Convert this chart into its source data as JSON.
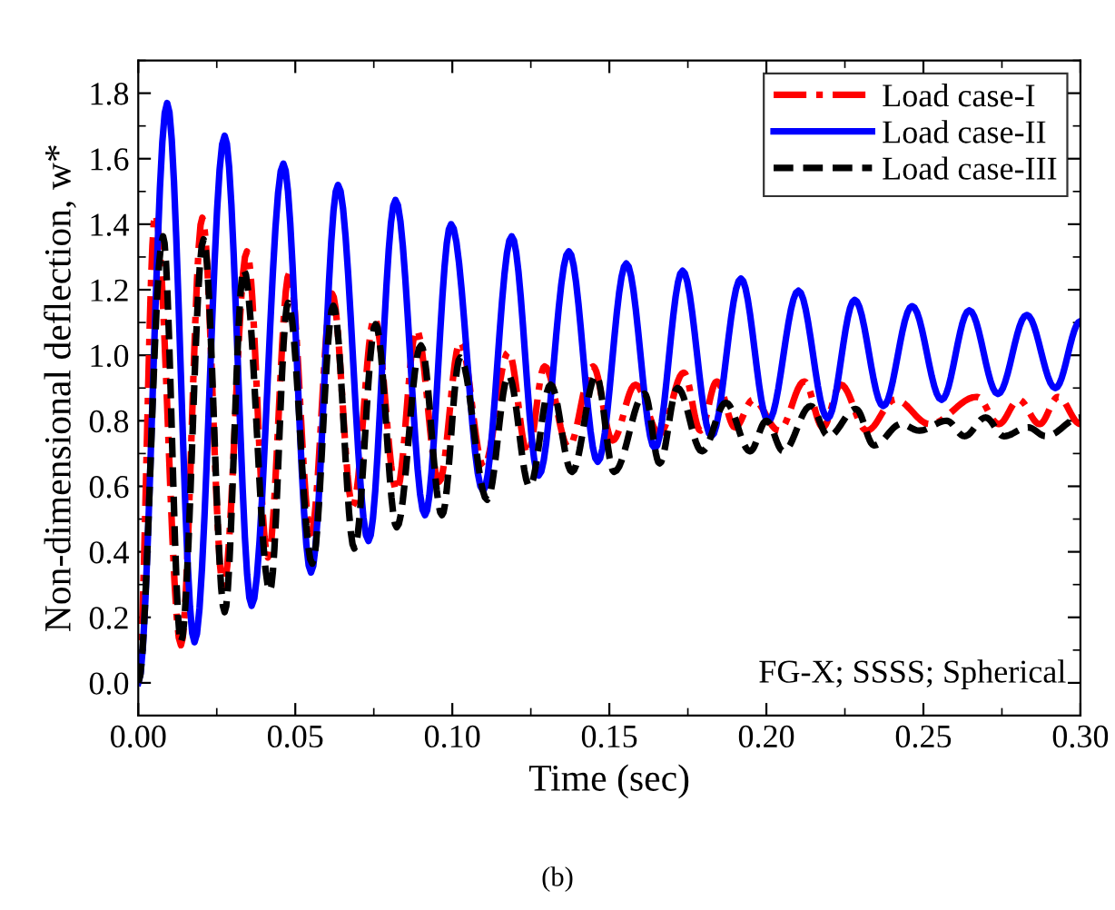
{
  "chart_data": {
    "type": "line",
    "xlabel": "Time (sec)",
    "ylabel": "Non-dimensional deflection, w*",
    "xlim": [
      0,
      0.3
    ],
    "ylim": [
      -0.1,
      1.9
    ],
    "xticks": [
      {
        "value": 0,
        "label": "0.00"
      },
      {
        "value": 0.05,
        "label": "0.05"
      },
      {
        "value": 0.1,
        "label": "0.10"
      },
      {
        "value": 0.15,
        "label": "0.15"
      },
      {
        "value": 0.2,
        "label": "0.20"
      },
      {
        "value": 0.25,
        "label": "0.25"
      },
      {
        "value": 0.3,
        "label": "0.30"
      }
    ],
    "yticks": [
      {
        "value": 0,
        "label": "0.0"
      },
      {
        "value": 0.2,
        "label": "0.2"
      },
      {
        "value": 0.4,
        "label": "0.4"
      },
      {
        "value": 0.6,
        "label": "0.6"
      },
      {
        "value": 0.8,
        "label": "0.8"
      },
      {
        "value": 1.0,
        "label": "1.0"
      },
      {
        "value": 1.2,
        "label": "1.2"
      },
      {
        "value": 1.4,
        "label": "1.4"
      },
      {
        "value": 1.6,
        "label": "1.6"
      },
      {
        "value": 1.8,
        "label": "1.8"
      }
    ],
    "grid": false,
    "legend": "top right",
    "marker": "none",
    "annotations": [
      "FG-X; SSSS; Spherical",
      "(b)"
    ],
    "series": [
      {
        "name": "Load case-I",
        "color": "#ff0000",
        "line_style": "dashdot",
        "x": [
          0,
          0.0054,
          0.0136,
          0.0204,
          0.0271,
          0.0346,
          0.0413,
          0.0481,
          0.055,
          0.0617,
          0.0683,
          0.0752,
          0.0823,
          0.0886,
          0.0958,
          0.1025,
          0.11,
          0.1179,
          0.124,
          0.1294,
          0.137,
          0.1448,
          0.151,
          0.1583,
          0.166,
          0.1737,
          0.179,
          0.1842,
          0.19,
          0.1958,
          0.204,
          0.2121,
          0.218,
          0.2237,
          0.232,
          0.241,
          0.252,
          0.267,
          0.274,
          0.2804,
          0.287,
          0.2929,
          0.3
        ],
        "values": [
          0,
          1.43,
          0.115,
          1.42,
          0.29,
          1.317,
          0.383,
          1.252,
          0.457,
          1.188,
          0.54,
          1.114,
          0.586,
          1.077,
          0.614,
          1.04,
          0.66,
          1.01,
          0.7,
          0.966,
          0.72,
          0.966,
          0.74,
          0.91,
          0.76,
          0.947,
          0.77,
          0.92,
          0.78,
          0.864,
          0.77,
          0.92,
          0.78,
          0.91,
          0.77,
          0.865,
          0.79,
          0.873,
          0.79,
          0.864,
          0.79,
          0.873,
          0.79
        ]
      },
      {
        "name": "Load case-II",
        "color": "#0000ff",
        "line_style": "solid",
        "x": [
          0,
          0.0092,
          0.0179,
          0.0275,
          0.0361,
          0.0462,
          0.055,
          0.0636,
          0.0733,
          0.0819,
          0.0913,
          0.0996,
          0.1098,
          0.1189,
          0.1275,
          0.1371,
          0.1463,
          0.1554,
          0.1645,
          0.1733,
          0.1825,
          0.1919,
          0.2006,
          0.2102,
          0.2195,
          0.2281,
          0.2372,
          0.2464,
          0.2558,
          0.2646,
          0.2737,
          0.2829,
          0.292,
          0.3
        ],
        "values": [
          0,
          1.77,
          0.124,
          1.67,
          0.235,
          1.585,
          0.337,
          1.52,
          0.433,
          1.474,
          0.512,
          1.4,
          0.586,
          1.363,
          0.633,
          1.317,
          0.675,
          1.28,
          0.716,
          1.258,
          0.753,
          1.234,
          0.799,
          1.197,
          0.808,
          1.169,
          0.845,
          1.15,
          0.864,
          1.137,
          0.882,
          1.123,
          0.9,
          1.104
        ]
      },
      {
        "name": "Load case-III",
        "color": "#000000",
        "line_style": "dashed",
        "x": [
          0,
          0.0079,
          0.0136,
          0.0208,
          0.0275,
          0.0336,
          0.0419,
          0.0477,
          0.0554,
          0.0621,
          0.0688,
          0.0756,
          0.0823,
          0.09,
          0.0967,
          0.1025,
          0.1111,
          0.1179,
          0.1246,
          0.1313,
          0.1381,
          0.1458,
          0.1515,
          0.1612,
          0.166,
          0.1717,
          0.1795,
          0.1871,
          0.1948,
          0.2,
          0.2054,
          0.2141,
          0.2198,
          0.2285,
          0.2343,
          0.2429,
          0.2487,
          0.2574,
          0.2631,
          0.2698,
          0.2756,
          0.2833,
          0.289,
          0.3
        ],
        "values": [
          0,
          1.363,
          0.124,
          1.354,
          0.216,
          1.262,
          0.281,
          1.16,
          0.364,
          1.151,
          0.41,
          1.095,
          0.475,
          1.03,
          0.512,
          0.993,
          0.559,
          0.938,
          0.6,
          0.91,
          0.644,
          0.938,
          0.644,
          0.883,
          0.67,
          0.9,
          0.707,
          0.855,
          0.707,
          0.8,
          0.707,
          0.845,
          0.753,
          0.836,
          0.725,
          0.79,
          0.77,
          0.8,
          0.753,
          0.81,
          0.753,
          0.78,
          0.753,
          0.81
        ]
      }
    ]
  }
}
